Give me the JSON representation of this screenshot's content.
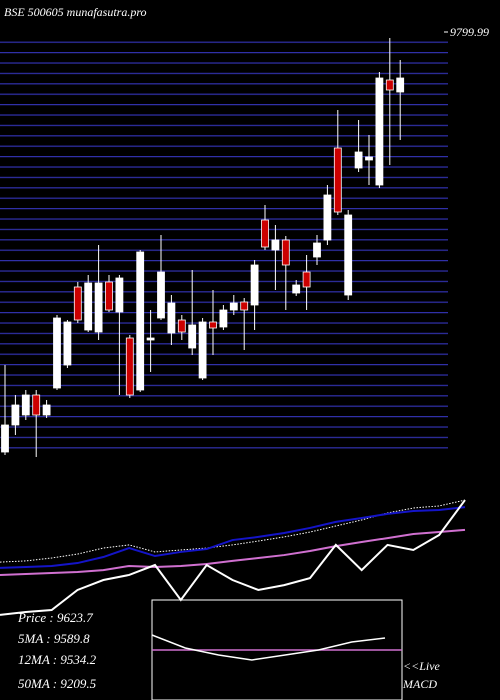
{
  "chart_data": [
    {
      "type": "candlestick",
      "title": "BSE 500605 munafasutra.pro",
      "ylim": [
        7660,
        9800
      ],
      "yticks": [
        9799.99
      ],
      "up_color": "#ffffff",
      "down_color": "#cc0000",
      "open": [
        7700,
        7835,
        7885,
        7985,
        7885,
        8020,
        8135,
        8525,
        8310,
        8300,
        8550,
        8400,
        8270,
        8010,
        8260,
        8370,
        8295,
        8360,
        8220,
        8070,
        8350,
        8325,
        8410,
        8450,
        8435,
        8860,
        8710,
        8760,
        8495,
        8600,
        8675,
        8760,
        9220,
        8485,
        9120,
        9160,
        9035,
        9560,
        9500
      ],
      "high": [
        8135,
        7985,
        8010,
        8010,
        7960,
        8385,
        8360,
        8550,
        8585,
        8735,
        8585,
        8585,
        8285,
        8710,
        8410,
        8785,
        8485,
        8385,
        8610,
        8370,
        8510,
        8435,
        8485,
        8470,
        8660,
        8935,
        8835,
        8780,
        8560,
        8685,
        8785,
        9035,
        9410,
        8910,
        9360,
        9285,
        9600,
        9770,
        9660
      ],
      "low": [
        7685,
        7785,
        7860,
        7675,
        7870,
        8010,
        8120,
        8345,
        8300,
        8260,
        8400,
        7985,
        7970,
        8000,
        8100,
        8360,
        8235,
        8260,
        8185,
        8060,
        8185,
        8310,
        8385,
        8210,
        8310,
        8710,
        8510,
        8410,
        8480,
        8410,
        8635,
        8735,
        8885,
        8460,
        9100,
        9035,
        9020,
        9135,
        9260
      ],
      "close": [
        7835,
        7935,
        7985,
        7885,
        7935,
        8370,
        8350,
        8360,
        8545,
        8545,
        8410,
        8570,
        7985,
        8700,
        8270,
        8600,
        8445,
        8300,
        8335,
        8350,
        8320,
        8410,
        8445,
        8410,
        8635,
        8725,
        8760,
        8635,
        8535,
        8525,
        8745,
        8985,
        8900,
        8885,
        9200,
        9175,
        9570,
        9510,
        9570
      ]
    },
    {
      "type": "line",
      "ylim": [
        0,
        100
      ],
      "series": [
        {
          "color": "#ffffff",
          "dashed": true,
          "values": [
            65.6,
            66.2,
            67.7,
            69.7,
            72.8,
            74.4,
            70.8,
            71.8,
            72.8,
            74.4,
            76.4,
            78.5,
            81.0,
            84.1,
            87.2,
            90.8,
            93.3,
            94.4,
            97.4
          ]
        },
        {
          "color": "#1414c8",
          "values": [
            62.6,
            63.1,
            63.6,
            65.1,
            68.2,
            72.8,
            68.7,
            70.8,
            72.3,
            76.9,
            78.5,
            80.5,
            83.1,
            86.2,
            88.2,
            90.3,
            91.8,
            92.3,
            93.8
          ]
        },
        {
          "color": "#d070d0",
          "values": [
            59.0,
            59.5,
            60.0,
            60.5,
            61.5,
            63.6,
            63.1,
            63.6,
            64.6,
            66.2,
            67.7,
            69.2,
            71.3,
            73.8,
            75.9,
            77.9,
            80.0,
            81.0,
            82.1
          ]
        },
        {
          "color": "#ffffff",
          "values": [
            38.5,
            40.0,
            41.0,
            51.3,
            56.4,
            59.0,
            64.1,
            46.2,
            64.1,
            56.4,
            51.3,
            53.8,
            57.4,
            74.4,
            61.5,
            74.4,
            71.8,
            79.5,
            97.4
          ]
        }
      ],
      "stats": [
        "Price   : 9623.7",
        "5MA    : 9589.8",
        "12MA  : 9534.2",
        "50MA  : 9209.5"
      ]
    },
    {
      "type": "macd",
      "title": "MACD",
      "link": "<<Live",
      "ylim": [
        0,
        100
      ],
      "color": "#ffffff",
      "values": [
        65,
        52,
        45,
        40,
        45,
        50,
        58,
        62
      ]
    }
  ]
}
